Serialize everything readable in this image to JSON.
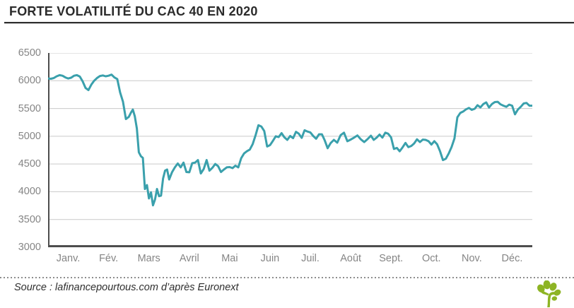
{
  "header": {
    "title": "FORTE VOLATILITÉ DU CAC 40 EN 2020"
  },
  "footer": {
    "source": "Source : lafinancepourtous.com d’après Euronext"
  },
  "colors": {
    "line": "#3aa0ac",
    "grid": "#c9c9c9",
    "axis": "#4d4d4d",
    "tick_text": "#858585",
    "title_text": "#2b2b2b",
    "logo_green": "#8db424"
  },
  "chart_data": {
    "type": "line",
    "title": "FORTE VOLATILITÉ DU CAC 40 EN 2020",
    "xlabel": "",
    "ylabel": "",
    "ylim": [
      3000,
      6500
    ],
    "yticks": [
      6500,
      6000,
      5500,
      5000,
      4500,
      4000,
      3500,
      3000
    ],
    "x_tick_labels": [
      "Janv.",
      "Fév.",
      "Mars",
      "Avril",
      "Mai",
      "Juin",
      "Juil.",
      "Août",
      "Sept.",
      "Oct.",
      "Nov.",
      "Déc."
    ],
    "grid": "horizontal",
    "legend": "none",
    "series": [
      {
        "name": "CAC 40",
        "values_by_month": [
          [
            6041,
            6035,
            6050,
            6080,
            6100,
            6090,
            6060,
            6040,
            6055,
            6090,
            6100,
            6075,
            5990,
            5870
          ],
          [
            5832,
            5930,
            6000,
            6050,
            6085,
            6095,
            6080,
            6090,
            6111,
            6060,
            6030,
            5790,
            5620,
            5310
          ],
          [
            5350,
            5420,
            5480,
            5360,
            5140,
            4710,
            4640,
            4610,
            4050,
            4120,
            3880,
            3990,
            3755,
            3860,
            4050,
            3920,
            3930,
            4240,
            4380,
            4400
          ],
          [
            4220,
            4350,
            4440,
            4510,
            4440,
            4525,
            4355,
            4350,
            4515,
            4525,
            4570,
            4330,
            4410,
            4570
          ],
          [
            4380,
            4430,
            4500,
            4460,
            4355,
            4400,
            4440,
            4445,
            4425,
            4470,
            4440,
            4605,
            4690,
            4730
          ],
          [
            4760,
            4860,
            5020,
            5198,
            5175,
            5095,
            4815,
            4840,
            4915,
            5000,
            4985,
            5055,
            4980,
            4935
          ],
          [
            5005,
            4965,
            5080,
            5045,
            4970,
            5108,
            5085,
            5070,
            5005,
            4955,
            5035,
            5035,
            4925,
            4785
          ],
          [
            4875,
            4935,
            4885,
            5020,
            5065,
            4910,
            4940,
            4975,
            5015,
            4945,
            4895,
            4947
          ],
          [
            5010,
            4935,
            4975,
            5030,
            4975,
            5065,
            5045,
            4980,
            4770,
            4790,
            4730,
            4800,
            4880,
            4803
          ],
          [
            4825,
            4870,
            4945,
            4895,
            4940,
            4935,
            4910,
            4850,
            4910,
            4855,
            4730,
            4570,
            4595,
            4690
          ],
          [
            4805,
            4960,
            5340,
            5420,
            5445,
            5485,
            5510,
            5475,
            5495,
            5560,
            5520,
            5580,
            5610,
            5518
          ],
          [
            5580,
            5615,
            5620,
            5575,
            5550,
            5530,
            5570,
            5550,
            5395,
            5480,
            5530,
            5590,
            5600,
            5551
          ]
        ]
      }
    ]
  }
}
